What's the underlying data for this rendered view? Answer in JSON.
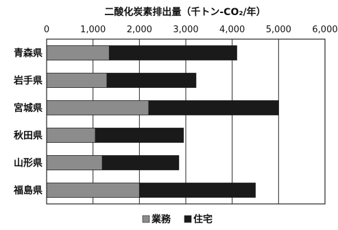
{
  "chart_data": {
    "type": "bar",
    "orientation": "horizontal",
    "stacked": true,
    "title": "二酸化炭素排出量（千トン-CO₂/年）",
    "xlim": [
      0,
      6000
    ],
    "xticks": [
      0,
      1000,
      2000,
      3000,
      4000,
      5000,
      6000
    ],
    "xtick_labels": [
      "0",
      "1,000",
      "2,000",
      "3,000",
      "4,000",
      "5,000",
      "6,000"
    ],
    "grid": true,
    "legend_position": "bottom",
    "categories": [
      "青森県",
      "岩手県",
      "宮城県",
      "秋田県",
      "山形県",
      "福島県"
    ],
    "series": [
      {
        "name": "業務",
        "color": "#8c8c8c",
        "values": [
          1350,
          1300,
          2200,
          1050,
          1200,
          2000
        ]
      },
      {
        "name": "住宅",
        "color": "#1a1a1a",
        "values": [
          2750,
          1920,
          2800,
          1900,
          1650,
          2500
        ]
      }
    ]
  }
}
